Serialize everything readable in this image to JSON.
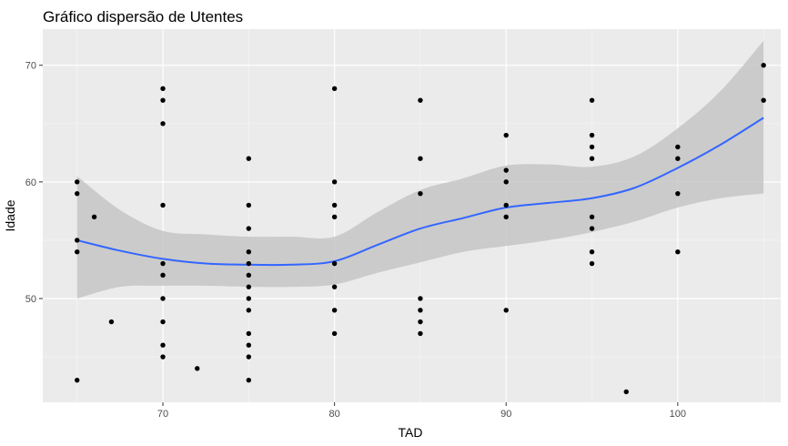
{
  "chart_data": {
    "type": "scatter",
    "title": "Gráfico dispersão de Utentes",
    "xlabel": "TAD",
    "ylabel": "Idade",
    "xlim": [
      63,
      106
    ],
    "ylim": [
      41.1,
      73.1
    ],
    "x_ticks": [
      70,
      80,
      90,
      100
    ],
    "y_ticks": [
      50,
      60,
      70
    ],
    "grid": true,
    "background": "#ebebeb",
    "point_color": "#000000",
    "smooth_color": "#3366ff",
    "band_color": "#c6c6c6",
    "points": [
      {
        "x": 65,
        "y": 60
      },
      {
        "x": 65,
        "y": 59
      },
      {
        "x": 65,
        "y": 55
      },
      {
        "x": 65,
        "y": 54
      },
      {
        "x": 65,
        "y": 43
      },
      {
        "x": 66,
        "y": 57
      },
      {
        "x": 67,
        "y": 48
      },
      {
        "x": 70,
        "y": 68
      },
      {
        "x": 70,
        "y": 67
      },
      {
        "x": 70,
        "y": 65
      },
      {
        "x": 70,
        "y": 58
      },
      {
        "x": 70,
        "y": 53
      },
      {
        "x": 70,
        "y": 52
      },
      {
        "x": 70,
        "y": 50
      },
      {
        "x": 70,
        "y": 48
      },
      {
        "x": 70,
        "y": 46
      },
      {
        "x": 70,
        "y": 45
      },
      {
        "x": 72,
        "y": 44
      },
      {
        "x": 75,
        "y": 62
      },
      {
        "x": 75,
        "y": 58
      },
      {
        "x": 75,
        "y": 56
      },
      {
        "x": 75,
        "y": 54
      },
      {
        "x": 75,
        "y": 53
      },
      {
        "x": 75,
        "y": 52
      },
      {
        "x": 75,
        "y": 51
      },
      {
        "x": 75,
        "y": 50
      },
      {
        "x": 75,
        "y": 49
      },
      {
        "x": 75,
        "y": 47
      },
      {
        "x": 75,
        "y": 46
      },
      {
        "x": 75,
        "y": 45
      },
      {
        "x": 75,
        "y": 43
      },
      {
        "x": 80,
        "y": 68
      },
      {
        "x": 80,
        "y": 60
      },
      {
        "x": 80,
        "y": 58
      },
      {
        "x": 80,
        "y": 57
      },
      {
        "x": 80,
        "y": 53
      },
      {
        "x": 80,
        "y": 51
      },
      {
        "x": 80,
        "y": 49
      },
      {
        "x": 80,
        "y": 47
      },
      {
        "x": 85,
        "y": 67
      },
      {
        "x": 85,
        "y": 62
      },
      {
        "x": 85,
        "y": 59
      },
      {
        "x": 85,
        "y": 50
      },
      {
        "x": 85,
        "y": 49
      },
      {
        "x": 85,
        "y": 48
      },
      {
        "x": 85,
        "y": 47
      },
      {
        "x": 90,
        "y": 64
      },
      {
        "x": 90,
        "y": 61
      },
      {
        "x": 90,
        "y": 60
      },
      {
        "x": 90,
        "y": 58
      },
      {
        "x": 90,
        "y": 57
      },
      {
        "x": 90,
        "y": 49
      },
      {
        "x": 95,
        "y": 67
      },
      {
        "x": 95,
        "y": 64
      },
      {
        "x": 95,
        "y": 63
      },
      {
        "x": 95,
        "y": 62
      },
      {
        "x": 95,
        "y": 57
      },
      {
        "x": 95,
        "y": 56
      },
      {
        "x": 95,
        "y": 54
      },
      {
        "x": 95,
        "y": 53
      },
      {
        "x": 97,
        "y": 42
      },
      {
        "x": 100,
        "y": 63
      },
      {
        "x": 100,
        "y": 62
      },
      {
        "x": 100,
        "y": 59
      },
      {
        "x": 100,
        "y": 54
      },
      {
        "x": 105,
        "y": 70
      },
      {
        "x": 105,
        "y": 67
      }
    ],
    "smooth": {
      "x": [
        65,
        67.5,
        70,
        72.5,
        75,
        77.5,
        80,
        82.5,
        85,
        87.5,
        90,
        92.5,
        95,
        97.5,
        100,
        102.5,
        105
      ],
      "fit": [
        55.0,
        54.1,
        53.4,
        53.0,
        52.9,
        52.9,
        53.2,
        54.6,
        56.0,
        56.9,
        57.8,
        58.2,
        58.6,
        59.5,
        61.2,
        63.2,
        65.5
      ],
      "lower": [
        50.0,
        51.0,
        51.1,
        51.1,
        51.0,
        51.0,
        51.2,
        52.2,
        53.1,
        54.0,
        54.5,
        55.0,
        55.7,
        56.6,
        57.8,
        58.6,
        59.0
      ],
      "upper": [
        60.5,
        57.6,
        55.8,
        55.5,
        55.3,
        55.3,
        55.3,
        57.4,
        59.3,
        60.3,
        61.4,
        61.5,
        61.3,
        62.2,
        64.6,
        67.8,
        72.1
      ]
    }
  }
}
